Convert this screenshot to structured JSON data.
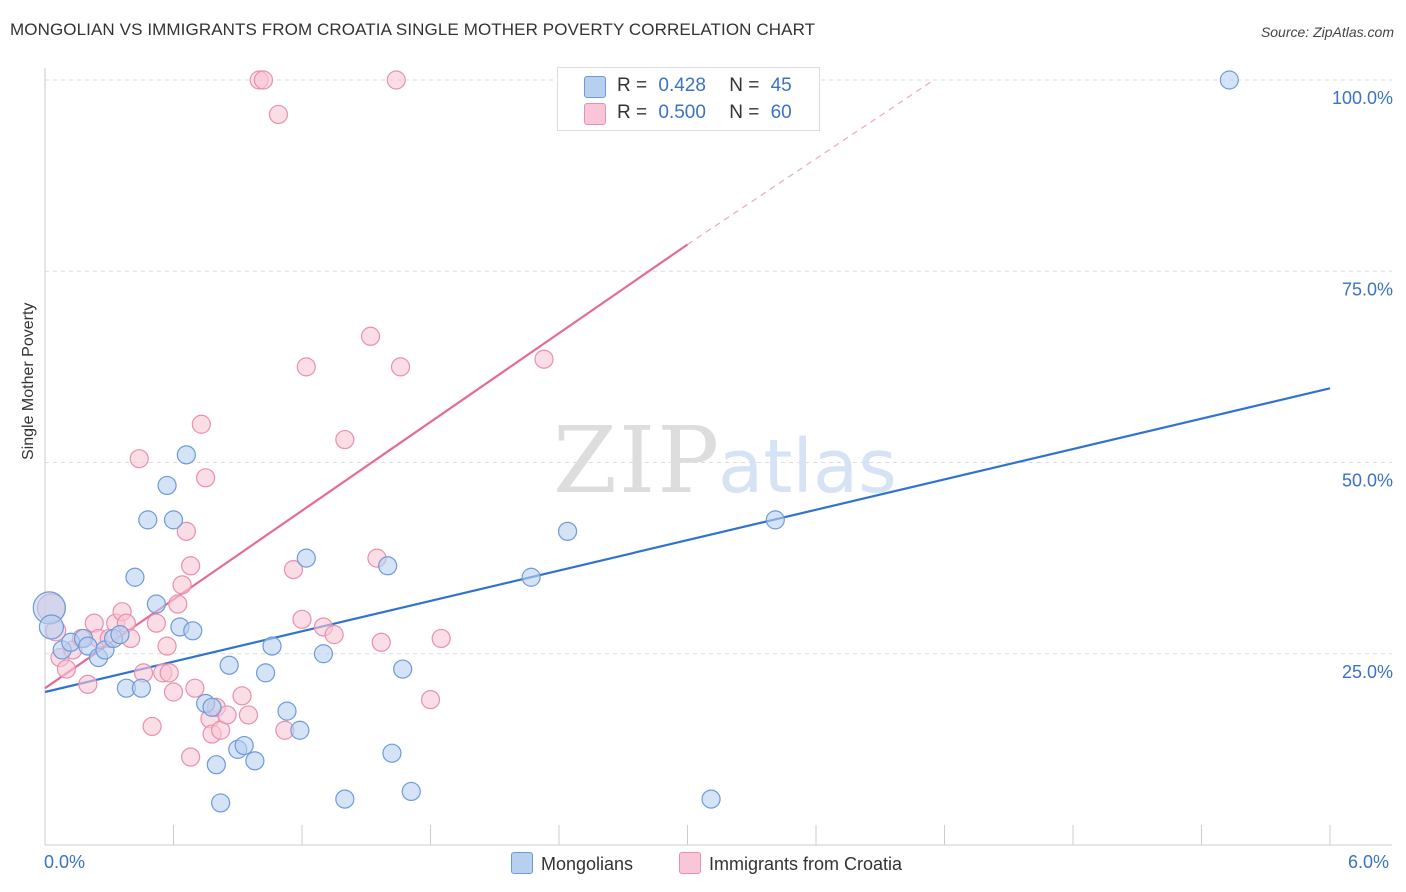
{
  "header": {
    "title": "MONGOLIAN VS IMMIGRANTS FROM CROATIA SINGLE MOTHER POVERTY CORRELATION CHART",
    "source": "Source: ZipAtlas.com"
  },
  "watermark": {
    "zip": "ZIP",
    "atlas": "atlas"
  },
  "legend": {
    "series1": {
      "r_label": "R =",
      "r_value": "0.428",
      "n_label": "N =",
      "n_value": "45"
    },
    "series2": {
      "r_label": "R =",
      "r_value": "0.500",
      "n_label": "N =",
      "n_value": "60"
    }
  },
  "colors": {
    "blue_fill": "#b8d0f0",
    "blue_stroke": "#6f9ad8",
    "blue_line": "#2f73cf",
    "pink_fill": "#f8c6d6",
    "pink_stroke": "#ea8fae",
    "pink_line": "#e56a94",
    "axis_label": "#3a72c4"
  },
  "chart_data": {
    "type": "scatter",
    "title": "MONGOLIAN VS IMMIGRANTS FROM CROATIA SINGLE MOTHER POVERTY CORRELATION CHART",
    "xlabel": "",
    "ylabel": "Single Mother Poverty",
    "xlim": [
      0,
      6
    ],
    "ylim": [
      0,
      100
    ],
    "x_tick_labels": [
      "0.0%",
      "6.0%"
    ],
    "y_tick_labels": [
      "25.0%",
      "50.0%",
      "75.0%",
      "100.0%"
    ],
    "y_ticks": [
      25,
      50,
      75,
      100
    ],
    "grid": true,
    "legend_position": "top-center",
    "series": [
      {
        "name": "Mongolians",
        "r": 0.428,
        "n": 45,
        "trend": {
          "x": [
            0,
            6
          ],
          "y": [
            20.0,
            59.7
          ]
        },
        "points": [
          [
            0.02,
            31,
            16
          ],
          [
            0.03,
            28.5,
            12
          ],
          [
            0.08,
            25.5,
            9
          ],
          [
            0.12,
            26.5,
            9
          ],
          [
            0.18,
            27,
            9
          ],
          [
            0.2,
            26,
            9
          ],
          [
            0.25,
            24.5,
            9
          ],
          [
            0.28,
            25.5,
            9
          ],
          [
            0.32,
            27,
            9
          ],
          [
            0.35,
            27.5,
            9
          ],
          [
            0.42,
            35,
            9
          ],
          [
            0.38,
            20.5,
            9
          ],
          [
            0.45,
            20.5,
            9
          ],
          [
            0.48,
            42.5,
            9
          ],
          [
            0.52,
            31.5,
            9
          ],
          [
            0.57,
            47,
            9
          ],
          [
            0.6,
            42.5,
            9
          ],
          [
            0.63,
            28.5,
            9
          ],
          [
            0.66,
            51,
            9
          ],
          [
            0.69,
            28,
            9
          ],
          [
            0.75,
            18.5,
            9
          ],
          [
            0.78,
            18,
            9
          ],
          [
            0.8,
            10.5,
            9
          ],
          [
            0.82,
            5.5,
            9
          ],
          [
            0.86,
            23.5,
            9
          ],
          [
            0.9,
            12.5,
            9
          ],
          [
            0.93,
            13,
            9
          ],
          [
            0.98,
            11,
            9
          ],
          [
            1.03,
            22.5,
            9
          ],
          [
            1.06,
            26,
            9
          ],
          [
            1.13,
            17.5,
            9
          ],
          [
            1.19,
            15,
            9
          ],
          [
            1.22,
            37.5,
            9
          ],
          [
            1.3,
            25,
            9
          ],
          [
            1.4,
            6,
            9
          ],
          [
            1.6,
            36.5,
            9
          ],
          [
            1.62,
            12,
            9
          ],
          [
            1.67,
            23,
            9
          ],
          [
            1.71,
            7,
            9
          ],
          [
            2.27,
            35,
            9
          ],
          [
            2.44,
            41,
            9
          ],
          [
            3.11,
            6,
            9
          ],
          [
            3.41,
            42.5,
            9
          ],
          [
            5.53,
            100,
            9
          ]
        ]
      },
      {
        "name": "Immigrants from Croatia",
        "r": 0.5,
        "n": 60,
        "trend": {
          "x": [
            0,
            3.0
          ],
          "y": [
            20.5,
            78.5
          ]
        },
        "trend_dashed": {
          "x": [
            3.0,
            4.15
          ],
          "y": [
            78.5,
            100
          ]
        },
        "points": [
          [
            0.03,
            31,
            14
          ],
          [
            0.05,
            28,
            10
          ],
          [
            0.07,
            24.5,
            9
          ],
          [
            0.1,
            23,
            9
          ],
          [
            0.13,
            25.5,
            9
          ],
          [
            0.17,
            27,
            9
          ],
          [
            0.2,
            21,
            9
          ],
          [
            0.23,
            29,
            9
          ],
          [
            0.25,
            27,
            9
          ],
          [
            0.3,
            27,
            9
          ],
          [
            0.33,
            29,
            9
          ],
          [
            0.36,
            30.5,
            9
          ],
          [
            0.38,
            29,
            9
          ],
          [
            0.4,
            27,
            9
          ],
          [
            0.44,
            50.5,
            9
          ],
          [
            0.46,
            22.5,
            9
          ],
          [
            0.5,
            15.5,
            9
          ],
          [
            0.52,
            29,
            9
          ],
          [
            0.55,
            22.5,
            9
          ],
          [
            0.57,
            26,
            9
          ],
          [
            0.58,
            22.5,
            9
          ],
          [
            0.6,
            20,
            9
          ],
          [
            0.62,
            31.5,
            9
          ],
          [
            0.64,
            34,
            9
          ],
          [
            0.66,
            41,
            9
          ],
          [
            0.68,
            36.5,
            9
          ],
          [
            0.68,
            11.5,
            9
          ],
          [
            0.7,
            20.5,
            9
          ],
          [
            0.73,
            55,
            9
          ],
          [
            0.75,
            48,
            9
          ],
          [
            0.77,
            16.5,
            9
          ],
          [
            0.78,
            14.5,
            9
          ],
          [
            0.8,
            18,
            9
          ],
          [
            0.82,
            15,
            9
          ],
          [
            0.85,
            17,
            9
          ],
          [
            0.92,
            19.5,
            9
          ],
          [
            0.95,
            17,
            9
          ],
          [
            1.0,
            100,
            9
          ],
          [
            1.02,
            100,
            9
          ],
          [
            1.09,
            95.5,
            9
          ],
          [
            1.12,
            15,
            9
          ],
          [
            1.16,
            36,
            9
          ],
          [
            1.2,
            29.5,
            9
          ],
          [
            1.22,
            62.5,
            9
          ],
          [
            1.3,
            28.5,
            9
          ],
          [
            1.35,
            27.5,
            9
          ],
          [
            1.4,
            53,
            9
          ],
          [
            1.52,
            66.5,
            9
          ],
          [
            1.55,
            37.5,
            9
          ],
          [
            1.57,
            26.5,
            9
          ],
          [
            1.64,
            100,
            9
          ],
          [
            1.66,
            62.5,
            9
          ],
          [
            1.8,
            19,
            9
          ],
          [
            1.85,
            27,
            9
          ],
          [
            2.33,
            63.5,
            9
          ]
        ]
      }
    ]
  },
  "bottom_legend": {
    "item1": "Mongolians",
    "item2": "Immigrants from Croatia"
  }
}
